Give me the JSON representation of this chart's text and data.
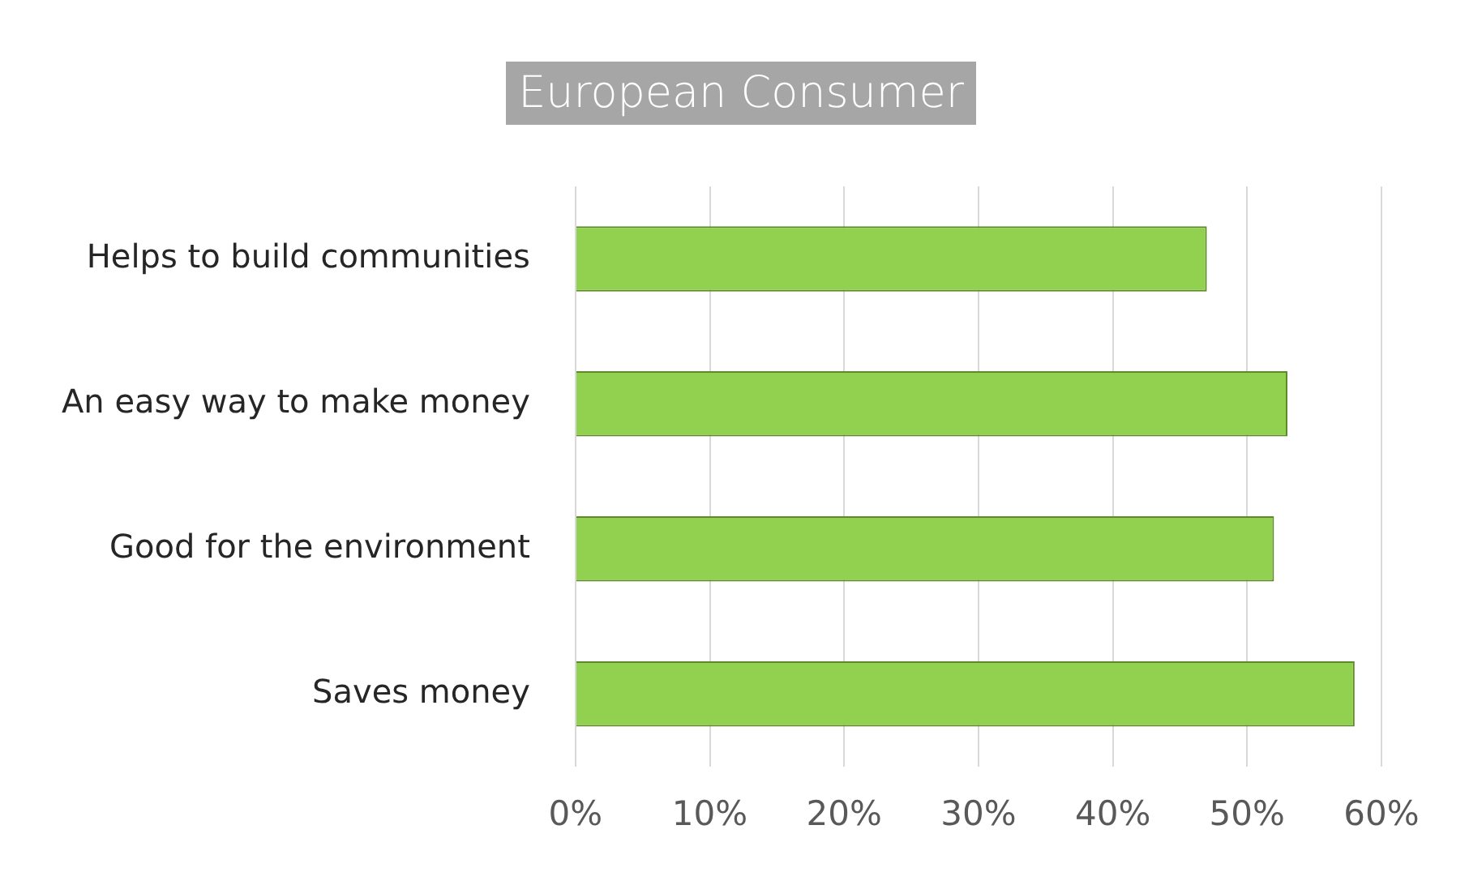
{
  "chart_data": {
    "type": "bar",
    "orientation": "horizontal",
    "title": "European Consumer",
    "categories": [
      "Helps to build communities",
      "An easy way to make money",
      "Good for the environment",
      "Saves money"
    ],
    "values": [
      47,
      53,
      52,
      58
    ],
    "color": "#92d050",
    "xlim": [
      0,
      60
    ],
    "xticks": [
      {
        "value": 0,
        "label": "0%"
      },
      {
        "value": 10,
        "label": "10%"
      },
      {
        "value": 20,
        "label": "20%"
      },
      {
        "value": 30,
        "label": "30%"
      },
      {
        "value": 40,
        "label": "40%"
      },
      {
        "value": 50,
        "label": "50%"
      },
      {
        "value": 60,
        "label": "60%"
      }
    ],
    "grid": "x",
    "legend": false
  }
}
